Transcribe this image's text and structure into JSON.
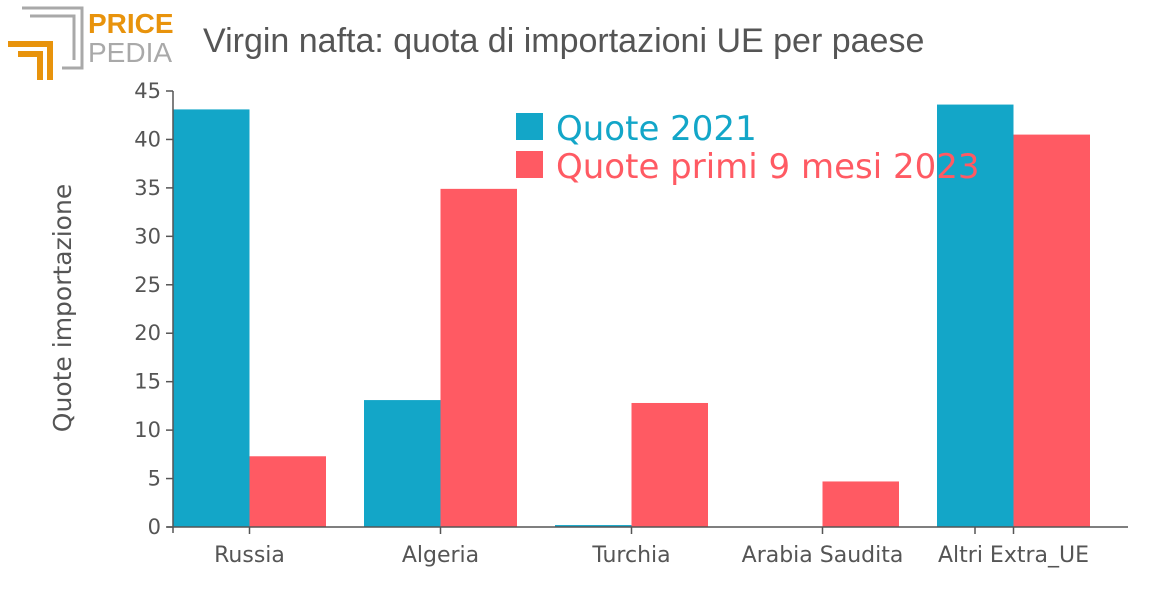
{
  "brand": {
    "line1": "PRICE",
    "line2": "PEDIA"
  },
  "colors": {
    "accent_orange": "#e8930c",
    "logo_gray": "#a9a9a9"
  },
  "chart_data": {
    "type": "bar",
    "title": "Virgin nafta: quota di importazioni UE per paese",
    "xlabel": "",
    "ylabel": "Quote importazione",
    "ylim": [
      0,
      45
    ],
    "yticks": [
      0,
      5,
      10,
      15,
      20,
      25,
      30,
      35,
      40,
      45
    ],
    "categories": [
      "Russia",
      "Algeria",
      "Turchia",
      "Arabia Saudita",
      "Altri Extra_UE"
    ],
    "series": [
      {
        "name": "Quote 2021",
        "color": "#13a6c8",
        "values": [
          43.1,
          13.1,
          0.2,
          0,
          43.6
        ]
      },
      {
        "name": "Quote primi 9 mesi 2023",
        "color": "#ff5a63",
        "values": [
          7.3,
          34.9,
          12.8,
          4.7,
          40.5
        ]
      }
    ],
    "legend_position": "top-center",
    "grid": false
  }
}
